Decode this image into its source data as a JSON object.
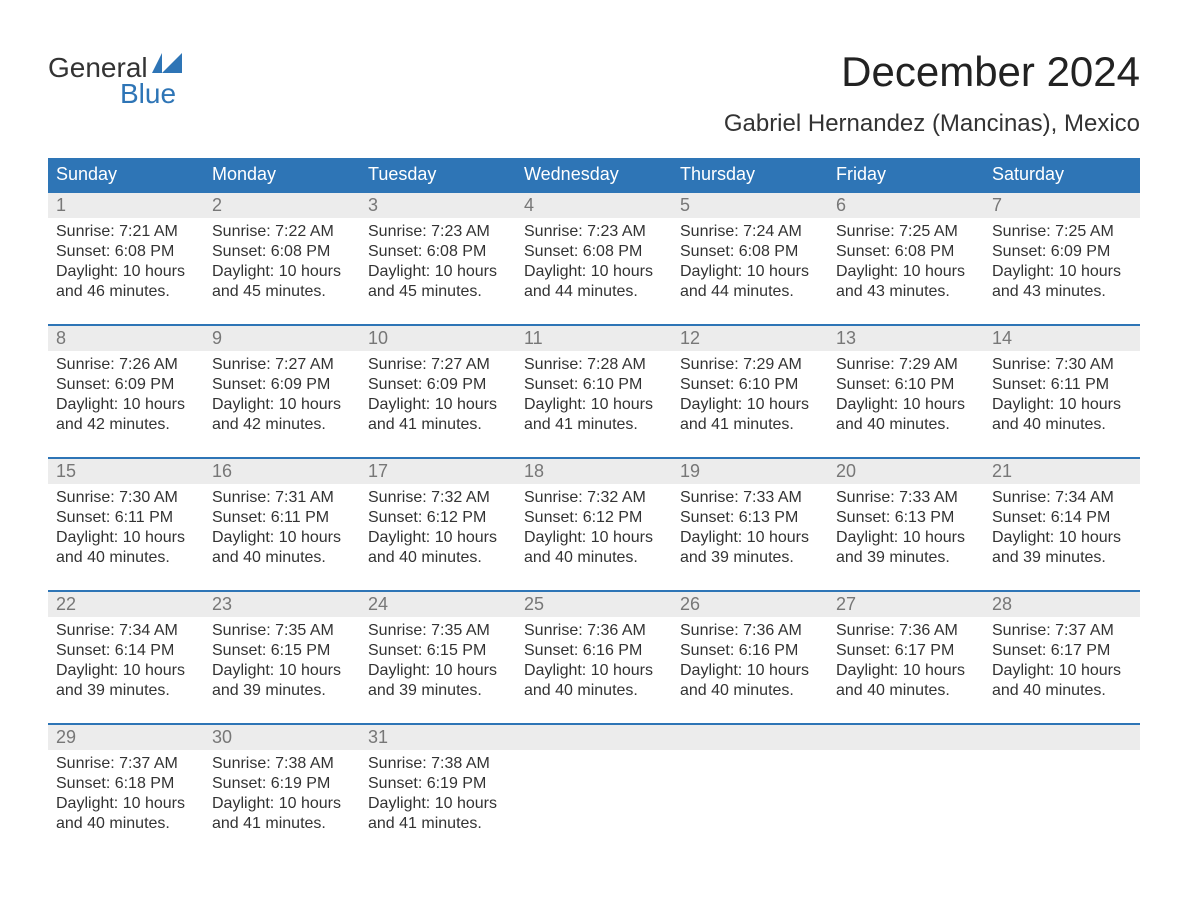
{
  "logo": {
    "line1": "General",
    "line2": "Blue"
  },
  "title": "December 2024",
  "location": "Gabriel Hernandez (Mancinas), Mexico",
  "colors": {
    "header_bg": "#2e75b6",
    "header_text": "#ffffff",
    "daynum_bg": "#ececec",
    "daynum_text": "#777777",
    "body_text": "#333333",
    "logo_blue": "#2e75b6"
  },
  "dayheads": [
    "Sunday",
    "Monday",
    "Tuesday",
    "Wednesday",
    "Thursday",
    "Friday",
    "Saturday"
  ],
  "weeks": [
    {
      "nums": [
        "1",
        "2",
        "3",
        "4",
        "5",
        "6",
        "7"
      ],
      "cells": [
        {
          "sunrise": "Sunrise: 7:21 AM",
          "sunset": "Sunset: 6:08 PM",
          "dl1": "Daylight: 10 hours",
          "dl2": "and 46 minutes."
        },
        {
          "sunrise": "Sunrise: 7:22 AM",
          "sunset": "Sunset: 6:08 PM",
          "dl1": "Daylight: 10 hours",
          "dl2": "and 45 minutes."
        },
        {
          "sunrise": "Sunrise: 7:23 AM",
          "sunset": "Sunset: 6:08 PM",
          "dl1": "Daylight: 10 hours",
          "dl2": "and 45 minutes."
        },
        {
          "sunrise": "Sunrise: 7:23 AM",
          "sunset": "Sunset: 6:08 PM",
          "dl1": "Daylight: 10 hours",
          "dl2": "and 44 minutes."
        },
        {
          "sunrise": "Sunrise: 7:24 AM",
          "sunset": "Sunset: 6:08 PM",
          "dl1": "Daylight: 10 hours",
          "dl2": "and 44 minutes."
        },
        {
          "sunrise": "Sunrise: 7:25 AM",
          "sunset": "Sunset: 6:08 PM",
          "dl1": "Daylight: 10 hours",
          "dl2": "and 43 minutes."
        },
        {
          "sunrise": "Sunrise: 7:25 AM",
          "sunset": "Sunset: 6:09 PM",
          "dl1": "Daylight: 10 hours",
          "dl2": "and 43 minutes."
        }
      ]
    },
    {
      "nums": [
        "8",
        "9",
        "10",
        "11",
        "12",
        "13",
        "14"
      ],
      "cells": [
        {
          "sunrise": "Sunrise: 7:26 AM",
          "sunset": "Sunset: 6:09 PM",
          "dl1": "Daylight: 10 hours",
          "dl2": "and 42 minutes."
        },
        {
          "sunrise": "Sunrise: 7:27 AM",
          "sunset": "Sunset: 6:09 PM",
          "dl1": "Daylight: 10 hours",
          "dl2": "and 42 minutes."
        },
        {
          "sunrise": "Sunrise: 7:27 AM",
          "sunset": "Sunset: 6:09 PM",
          "dl1": "Daylight: 10 hours",
          "dl2": "and 41 minutes."
        },
        {
          "sunrise": "Sunrise: 7:28 AM",
          "sunset": "Sunset: 6:10 PM",
          "dl1": "Daylight: 10 hours",
          "dl2": "and 41 minutes."
        },
        {
          "sunrise": "Sunrise: 7:29 AM",
          "sunset": "Sunset: 6:10 PM",
          "dl1": "Daylight: 10 hours",
          "dl2": "and 41 minutes."
        },
        {
          "sunrise": "Sunrise: 7:29 AM",
          "sunset": "Sunset: 6:10 PM",
          "dl1": "Daylight: 10 hours",
          "dl2": "and 40 minutes."
        },
        {
          "sunrise": "Sunrise: 7:30 AM",
          "sunset": "Sunset: 6:11 PM",
          "dl1": "Daylight: 10 hours",
          "dl2": "and 40 minutes."
        }
      ]
    },
    {
      "nums": [
        "15",
        "16",
        "17",
        "18",
        "19",
        "20",
        "21"
      ],
      "cells": [
        {
          "sunrise": "Sunrise: 7:30 AM",
          "sunset": "Sunset: 6:11 PM",
          "dl1": "Daylight: 10 hours",
          "dl2": "and 40 minutes."
        },
        {
          "sunrise": "Sunrise: 7:31 AM",
          "sunset": "Sunset: 6:11 PM",
          "dl1": "Daylight: 10 hours",
          "dl2": "and 40 minutes."
        },
        {
          "sunrise": "Sunrise: 7:32 AM",
          "sunset": "Sunset: 6:12 PM",
          "dl1": "Daylight: 10 hours",
          "dl2": "and 40 minutes."
        },
        {
          "sunrise": "Sunrise: 7:32 AM",
          "sunset": "Sunset: 6:12 PM",
          "dl1": "Daylight: 10 hours",
          "dl2": "and 40 minutes."
        },
        {
          "sunrise": "Sunrise: 7:33 AM",
          "sunset": "Sunset: 6:13 PM",
          "dl1": "Daylight: 10 hours",
          "dl2": "and 39 minutes."
        },
        {
          "sunrise": "Sunrise: 7:33 AM",
          "sunset": "Sunset: 6:13 PM",
          "dl1": "Daylight: 10 hours",
          "dl2": "and 39 minutes."
        },
        {
          "sunrise": "Sunrise: 7:34 AM",
          "sunset": "Sunset: 6:14 PM",
          "dl1": "Daylight: 10 hours",
          "dl2": "and 39 minutes."
        }
      ]
    },
    {
      "nums": [
        "22",
        "23",
        "24",
        "25",
        "26",
        "27",
        "28"
      ],
      "cells": [
        {
          "sunrise": "Sunrise: 7:34 AM",
          "sunset": "Sunset: 6:14 PM",
          "dl1": "Daylight: 10 hours",
          "dl2": "and 39 minutes."
        },
        {
          "sunrise": "Sunrise: 7:35 AM",
          "sunset": "Sunset: 6:15 PM",
          "dl1": "Daylight: 10 hours",
          "dl2": "and 39 minutes."
        },
        {
          "sunrise": "Sunrise: 7:35 AM",
          "sunset": "Sunset: 6:15 PM",
          "dl1": "Daylight: 10 hours",
          "dl2": "and 39 minutes."
        },
        {
          "sunrise": "Sunrise: 7:36 AM",
          "sunset": "Sunset: 6:16 PM",
          "dl1": "Daylight: 10 hours",
          "dl2": "and 40 minutes."
        },
        {
          "sunrise": "Sunrise: 7:36 AM",
          "sunset": "Sunset: 6:16 PM",
          "dl1": "Daylight: 10 hours",
          "dl2": "and 40 minutes."
        },
        {
          "sunrise": "Sunrise: 7:36 AM",
          "sunset": "Sunset: 6:17 PM",
          "dl1": "Daylight: 10 hours",
          "dl2": "and 40 minutes."
        },
        {
          "sunrise": "Sunrise: 7:37 AM",
          "sunset": "Sunset: 6:17 PM",
          "dl1": "Daylight: 10 hours",
          "dl2": "and 40 minutes."
        }
      ]
    },
    {
      "nums": [
        "29",
        "30",
        "31",
        "",
        "",
        "",
        ""
      ],
      "cells": [
        {
          "sunrise": "Sunrise: 7:37 AM",
          "sunset": "Sunset: 6:18 PM",
          "dl1": "Daylight: 10 hours",
          "dl2": "and 40 minutes."
        },
        {
          "sunrise": "Sunrise: 7:38 AM",
          "sunset": "Sunset: 6:19 PM",
          "dl1": "Daylight: 10 hours",
          "dl2": "and 41 minutes."
        },
        {
          "sunrise": "Sunrise: 7:38 AM",
          "sunset": "Sunset: 6:19 PM",
          "dl1": "Daylight: 10 hours",
          "dl2": "and 41 minutes."
        },
        {
          "sunrise": "",
          "sunset": "",
          "dl1": "",
          "dl2": ""
        },
        {
          "sunrise": "",
          "sunset": "",
          "dl1": "",
          "dl2": ""
        },
        {
          "sunrise": "",
          "sunset": "",
          "dl1": "",
          "dl2": ""
        },
        {
          "sunrise": "",
          "sunset": "",
          "dl1": "",
          "dl2": ""
        }
      ]
    }
  ]
}
